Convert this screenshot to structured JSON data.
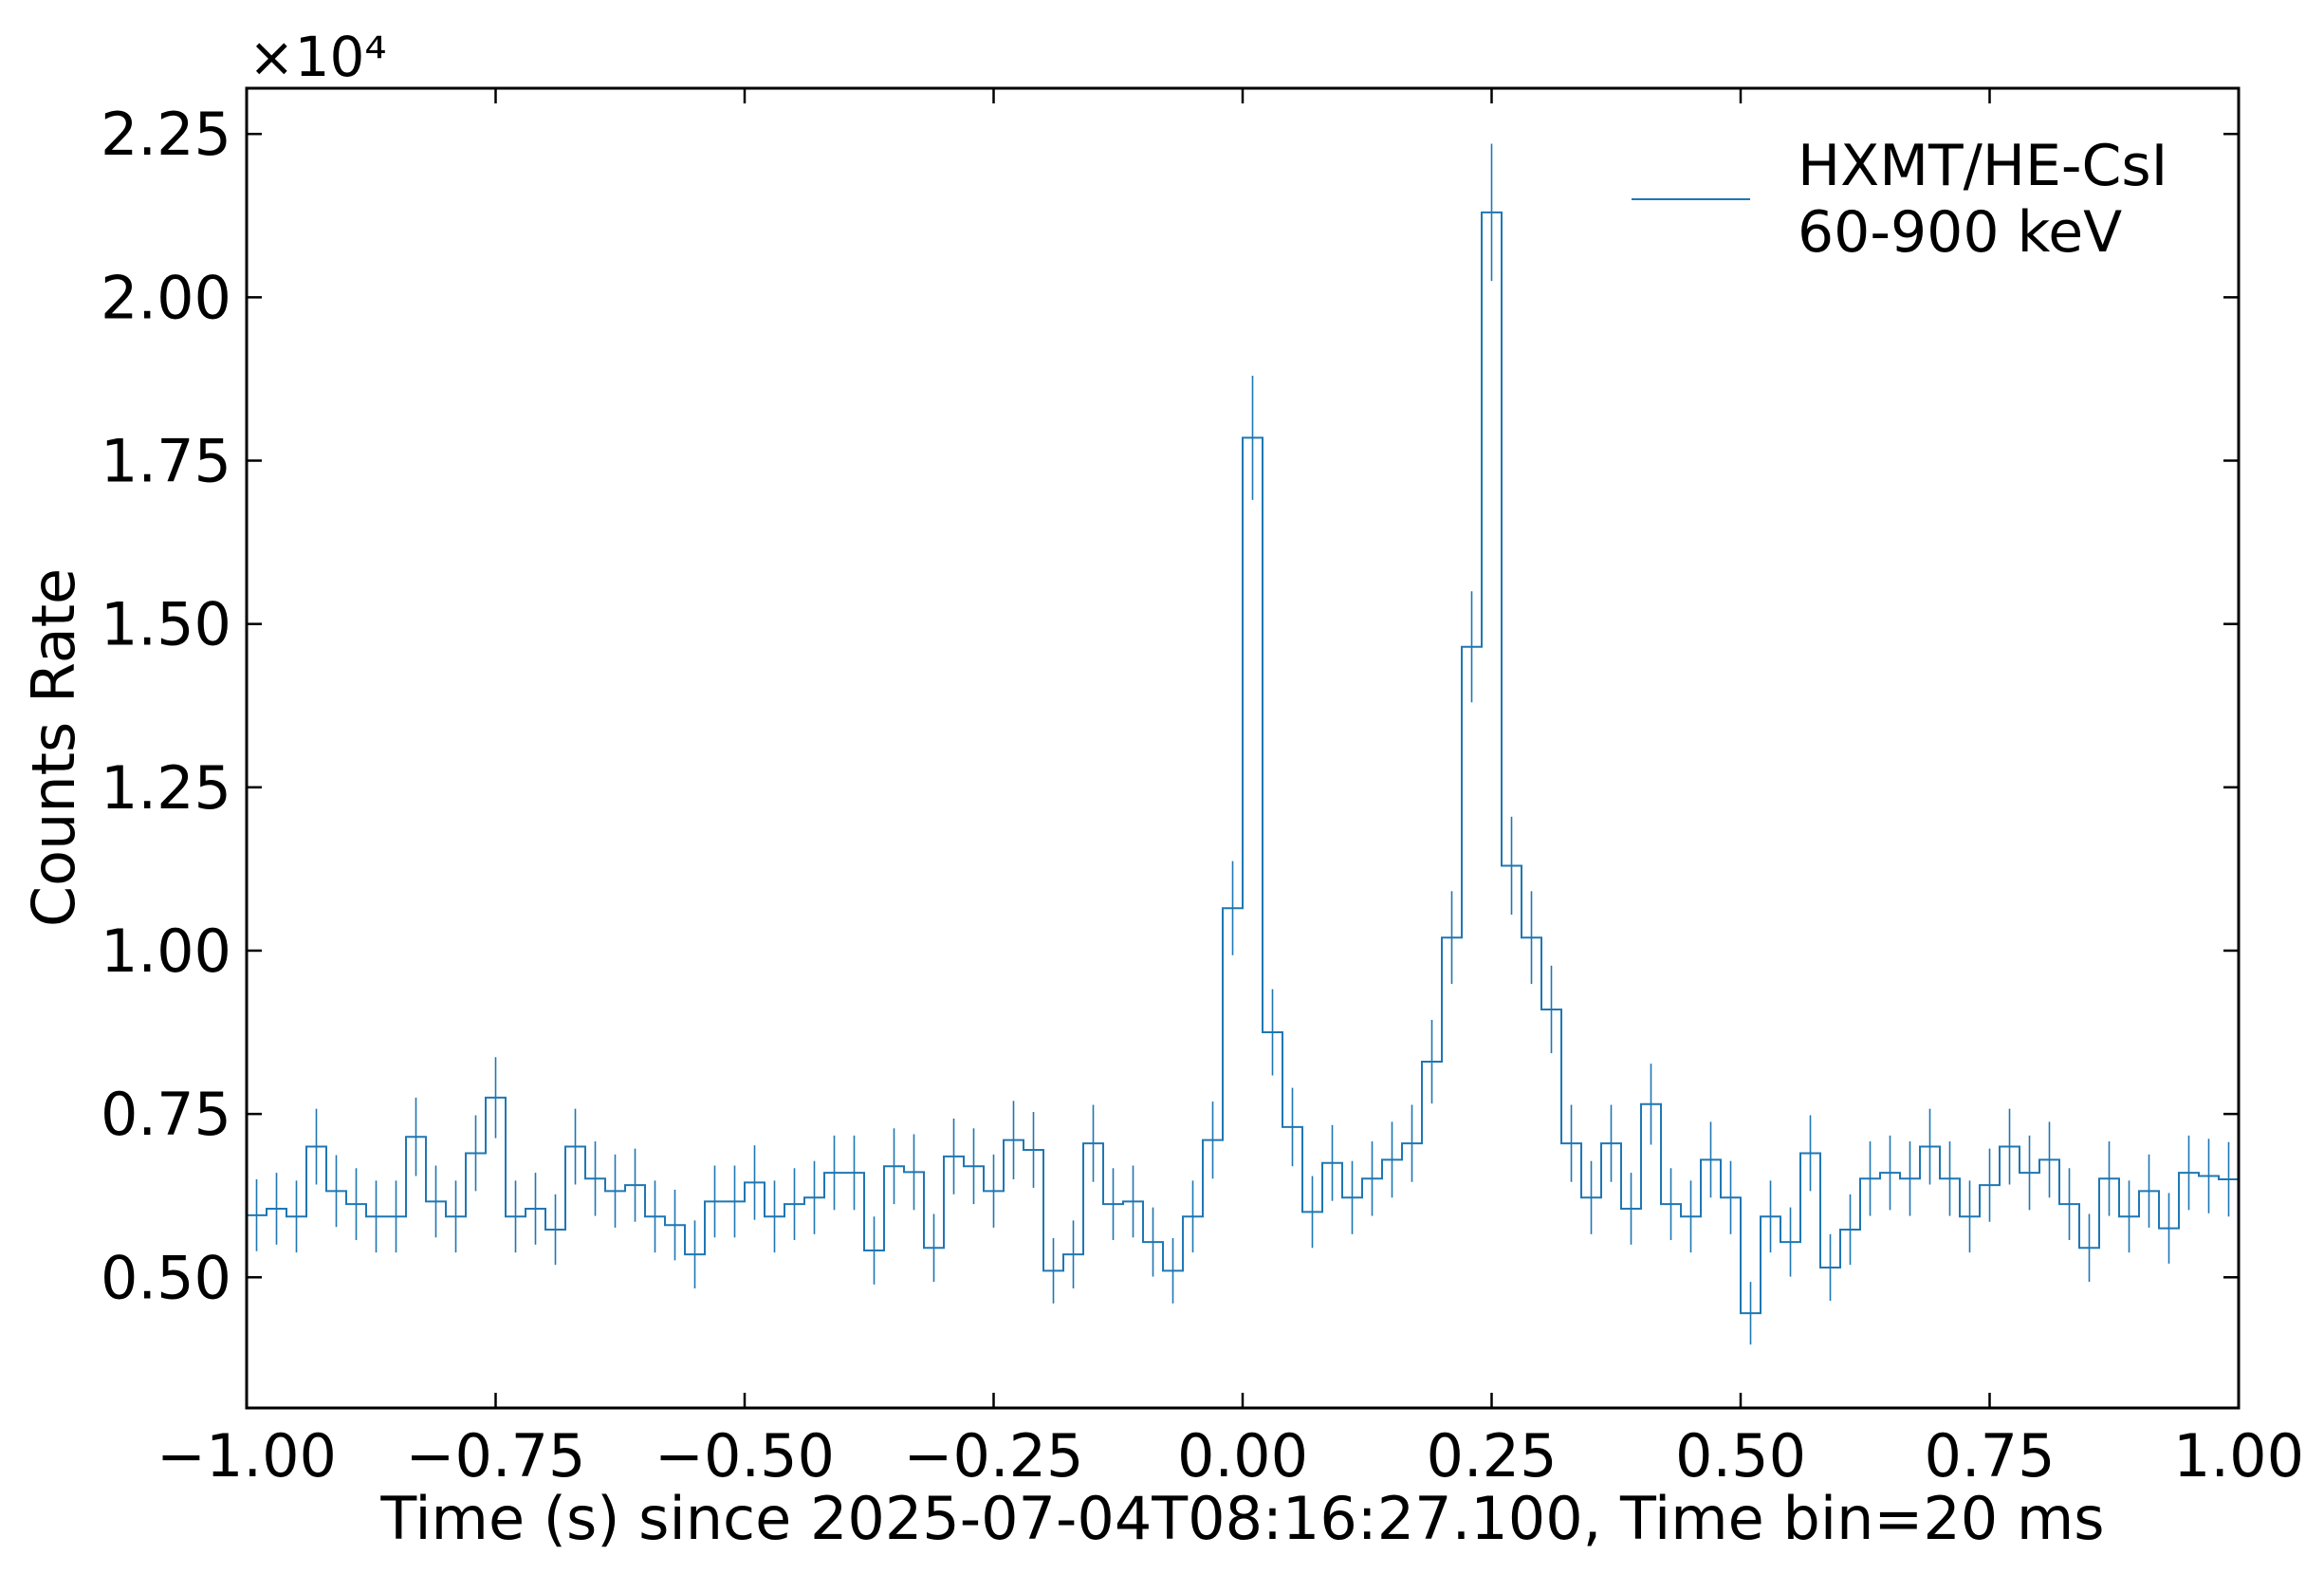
{
  "chart_data": {
    "type": "line",
    "step": "post",
    "error_bars": true,
    "xlabel": "Time (s) since 2025-07-04T08:16:27.100, Time bin=20 ms",
    "ylabel": "Counts Rate",
    "y_multiplier": "×10⁴",
    "xlim": [
      -1.0,
      1.0
    ],
    "ylim": [
      0.3,
      2.32
    ],
    "x_ticks": [
      -1.0,
      -0.75,
      -0.5,
      -0.25,
      0.0,
      0.25,
      0.5,
      0.75,
      1.0
    ],
    "x_tick_labels": [
      "−1.00",
      "−0.75",
      "−0.50",
      "−0.25",
      "0.00",
      "0.25",
      "0.50",
      "0.75",
      "1.00"
    ],
    "y_ticks": [
      0.5,
      0.75,
      1.0,
      1.25,
      1.5,
      1.75,
      2.0,
      2.25
    ],
    "y_tick_labels": [
      "0.50",
      "0.75",
      "1.00",
      "1.25",
      "1.50",
      "1.75",
      "2.00",
      "2.25"
    ],
    "ticks_direction": "in",
    "grid": false,
    "legend": {
      "placement": "top-right",
      "entries": [
        {
          "label_line1": "HXMT/HE-CsI",
          "label_line2": "60-900 keV"
        }
      ]
    },
    "series": [
      {
        "name": "HXMT/HE-CsI 60-900 keV",
        "color": "#1f77b4",
        "bin_width": 0.02,
        "x_start": -1.0,
        "values": [
          0.595,
          0.605,
          0.593,
          0.7,
          0.632,
          0.612,
          0.593,
          0.593,
          0.715,
          0.616,
          0.593,
          0.69,
          0.775,
          0.593,
          0.605,
          0.573,
          0.7,
          0.651,
          0.632,
          0.641,
          0.593,
          0.58,
          0.535,
          0.616,
          0.616,
          0.645,
          0.593,
          0.612,
          0.622,
          0.66,
          0.66,
          0.541,
          0.67,
          0.661,
          0.545,
          0.685,
          0.67,
          0.632,
          0.71,
          0.695,
          0.51,
          0.535,
          0.705,
          0.612,
          0.616,
          0.554,
          0.51,
          0.593,
          0.71,
          1.065,
          1.785,
          0.875,
          0.73,
          0.6,
          0.675,
          0.622,
          0.651,
          0.68,
          0.705,
          0.83,
          1.02,
          1.465,
          2.13,
          1.13,
          1.02,
          0.91,
          0.705,
          0.622,
          0.705,
          0.605,
          0.765,
          0.612,
          0.593,
          0.68,
          0.622,
          0.445,
          0.593,
          0.554,
          0.69,
          0.515,
          0.573,
          0.651,
          0.66,
          0.651,
          0.7,
          0.651,
          0.593,
          0.641,
          0.7,
          0.66,
          0.68,
          0.612,
          0.545,
          0.651,
          0.593,
          0.632,
          0.575,
          0.66,
          0.655,
          0.65
        ],
        "errors": [
          0.055,
          0.055,
          0.055,
          0.058,
          0.055,
          0.055,
          0.055,
          0.055,
          0.06,
          0.055,
          0.055,
          0.058,
          0.062,
          0.055,
          0.055,
          0.054,
          0.058,
          0.057,
          0.056,
          0.056,
          0.055,
          0.054,
          0.052,
          0.055,
          0.055,
          0.057,
          0.055,
          0.055,
          0.056,
          0.057,
          0.057,
          0.052,
          0.058,
          0.058,
          0.052,
          0.058,
          0.058,
          0.056,
          0.06,
          0.058,
          0.05,
          0.052,
          0.059,
          0.055,
          0.055,
          0.053,
          0.05,
          0.055,
          0.059,
          0.072,
          0.095,
          0.066,
          0.06,
          0.055,
          0.058,
          0.056,
          0.057,
          0.058,
          0.059,
          0.064,
          0.071,
          0.085,
          0.105,
          0.075,
          0.071,
          0.067,
          0.059,
          0.056,
          0.059,
          0.055,
          0.062,
          0.055,
          0.055,
          0.058,
          0.056,
          0.048,
          0.055,
          0.053,
          0.058,
          0.051,
          0.054,
          0.057,
          0.057,
          0.057,
          0.058,
          0.057,
          0.055,
          0.056,
          0.058,
          0.057,
          0.058,
          0.055,
          0.052,
          0.057,
          0.055,
          0.056,
          0.054,
          0.057,
          0.057,
          0.057
        ]
      }
    ]
  }
}
